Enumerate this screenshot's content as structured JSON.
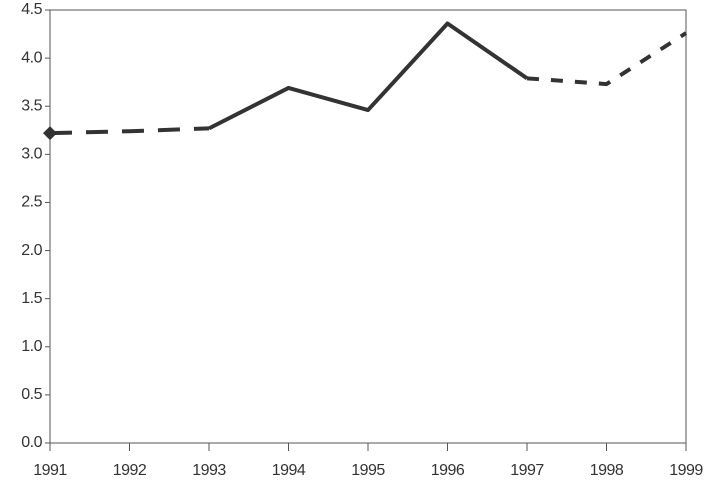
{
  "chart_data": {
    "type": "line",
    "x": [
      1991,
      1992,
      1993,
      1994,
      1995,
      1996,
      1997,
      1998,
      1999
    ],
    "xlim": [
      1991,
      1999
    ],
    "xticks": [
      1991,
      1992,
      1993,
      1994,
      1995,
      1996,
      1997,
      1998,
      1999
    ],
    "ylim": [
      0,
      4.5
    ],
    "yticks": [
      {
        "value": 0,
        "label": "0.0"
      },
      0.5,
      {
        "value": 1,
        "label": "1.0"
      },
      1.5,
      {
        "value": 2,
        "label": "2.0"
      },
      2.5,
      {
        "value": 3,
        "label": "3.0"
      },
      3.5,
      {
        "value": 4,
        "label": "4.0"
      },
      4.5
    ],
    "grid": false,
    "series": [
      {
        "color": "#333333",
        "dash": "dashed",
        "marker": "diamond",
        "values": [
          3.22,
          3.24,
          3.27,
          null,
          null,
          null,
          null,
          null,
          null
        ]
      },
      {
        "color": "#333333",
        "dash": "solid",
        "values": [
          null,
          null,
          3.27,
          3.69,
          3.46,
          4.36,
          3.79,
          null,
          null
        ]
      },
      {
        "color": "#333333",
        "dash": "dotted",
        "values": [
          null,
          null,
          null,
          null,
          null,
          null,
          3.79,
          3.73,
          4.26
        ]
      }
    ]
  }
}
